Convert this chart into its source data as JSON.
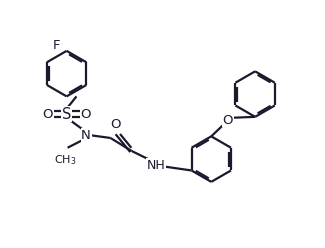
{
  "bg_color": "#ffffff",
  "line_color": "#1a1a2e",
  "line_width": 1.6,
  "figsize": [
    3.25,
    2.48
  ],
  "dpi": 100,
  "xlim": [
    0,
    10
  ],
  "ylim": [
    0,
    7.6
  ]
}
